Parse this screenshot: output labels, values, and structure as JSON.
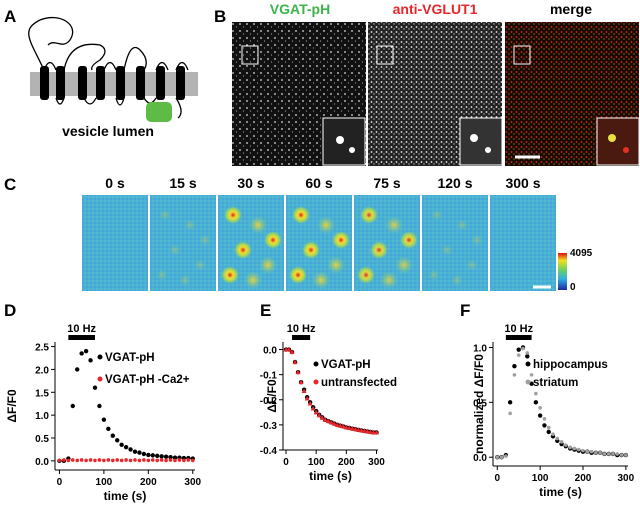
{
  "figure": {
    "panel_labels": [
      "A",
      "B",
      "C",
      "D",
      "E",
      "F"
    ],
    "a": {
      "label": "vesicle lumen"
    },
    "b": {
      "titles": [
        "VGAT-pH",
        "anti-VGLUT1",
        "merge"
      ]
    },
    "c": {
      "times": [
        "0 s",
        "15 s",
        "30 s",
        "60 s",
        "75 s",
        "120 s",
        "300 s"
      ],
      "colorbar": {
        "max": 4095,
        "min": 0
      }
    }
  },
  "chart_data": [
    {
      "type": "scatter",
      "y_label": "ΔF/F0",
      "x_label": "time (s)",
      "stimulus": {
        "label": "10 Hz",
        "x": [
          20,
          80
        ]
      },
      "xlim": [
        -10,
        305
      ],
      "ylim": [
        -0.2,
        2.6
      ],
      "xticks": [
        0,
        100,
        200,
        300
      ],
      "yticks": [
        {
          "value": 0,
          "label": "0.0"
        },
        0.5,
        {
          "value": 1,
          "label": "1.0"
        },
        1.5,
        {
          "value": 2,
          "label": "2.0"
        },
        2.5
      ],
      "x": [
        0,
        10,
        20,
        30,
        40,
        50,
        60,
        70,
        80,
        90,
        100,
        110,
        120,
        130,
        140,
        150,
        160,
        170,
        180,
        190,
        200,
        210,
        220,
        230,
        240,
        250,
        260,
        270,
        280,
        290,
        300
      ],
      "series": [
        {
          "name": "VGAT-pH",
          "color": "#000000",
          "values": [
            0,
            0,
            0.05,
            1.2,
            2.0,
            2.35,
            2.4,
            2.2,
            1.6,
            1.2,
            0.9,
            0.7,
            0.55,
            0.45,
            0.35,
            0.3,
            0.25,
            0.2,
            0.18,
            0.15,
            0.13,
            0.12,
            0.11,
            0.1,
            0.09,
            0.08,
            0.07,
            0.07,
            0.06,
            0.06,
            0.05
          ]
        },
        {
          "name": "VGAT-pH -Ca2+",
          "color": "#e8262b",
          "values": [
            0.01,
            0.02,
            0.01,
            0.02,
            0.01,
            0.02,
            0.01,
            0.02,
            0.01,
            0.02,
            0.01,
            0.02,
            0.01,
            0.02,
            0.01,
            0.02,
            0.01,
            0.02,
            0.01,
            0.02,
            0.01,
            0.02,
            0.01,
            0.02,
            0.01,
            0.02,
            0.01,
            0.02,
            0.01,
            0.02,
            0.01
          ]
        }
      ]
    },
    {
      "type": "scatter",
      "y_label": "ΔF/F0",
      "x_label": "time (s)",
      "stimulus": {
        "label": "10 Hz",
        "x": [
          20,
          80
        ]
      },
      "xlim": [
        -10,
        305
      ],
      "ylim": [
        -0.4,
        0.03
      ],
      "xticks": [
        0,
        100,
        200,
        300
      ],
      "yticks": [
        {
          "value": 0,
          "label": "0.0"
        },
        -0.1,
        -0.2,
        -0.3,
        -0.4
      ],
      "x": [
        0,
        10,
        20,
        30,
        40,
        50,
        60,
        70,
        80,
        90,
        100,
        110,
        120,
        130,
        140,
        150,
        160,
        170,
        180,
        190,
        200,
        210,
        220,
        230,
        240,
        250,
        260,
        270,
        280,
        290,
        300
      ],
      "series": [
        {
          "name": "VGAT-pH",
          "color": "#000000",
          "values": [
            0,
            0,
            -0.01,
            -0.05,
            -0.09,
            -0.13,
            -0.16,
            -0.19,
            -0.21,
            -0.23,
            -0.245,
            -0.26,
            -0.27,
            -0.28,
            -0.285,
            -0.29,
            -0.295,
            -0.3,
            -0.303,
            -0.306,
            -0.31,
            -0.312,
            -0.315,
            -0.317,
            -0.32,
            -0.322,
            -0.324,
            -0.326,
            -0.328,
            -0.33,
            -0.33
          ]
        },
        {
          "name": "untransfected",
          "color": "#e8262b",
          "values": [
            0,
            0,
            -0.01,
            -0.05,
            -0.09,
            -0.13,
            -0.165,
            -0.195,
            -0.215,
            -0.235,
            -0.25,
            -0.262,
            -0.272,
            -0.28,
            -0.285,
            -0.29,
            -0.295,
            -0.3,
            -0.303,
            -0.306,
            -0.31,
            -0.312,
            -0.315,
            -0.317,
            -0.32,
            -0.322,
            -0.324,
            -0.326,
            -0.328,
            -0.33,
            -0.33
          ]
        }
      ]
    },
    {
      "type": "scatter",
      "y_label": "normalized ΔF/F0",
      "x_label": "time (s)",
      "stimulus": {
        "label": "10 Hz",
        "x": [
          20,
          80
        ]
      },
      "xlim": [
        -10,
        305
      ],
      "ylim": [
        -0.08,
        1.05
      ],
      "xticks": [
        0,
        100,
        200,
        300
      ],
      "yticks": [
        {
          "value": 0,
          "label": "0.0"
        },
        0.5,
        {
          "value": 1,
          "label": "1.0"
        }
      ],
      "x": [
        0,
        10,
        20,
        30,
        40,
        50,
        60,
        70,
        80,
        90,
        100,
        110,
        120,
        130,
        140,
        150,
        160,
        170,
        180,
        190,
        200,
        210,
        220,
        230,
        240,
        250,
        260,
        270,
        280,
        290,
        300
      ],
      "series": [
        {
          "name": "hippocampus",
          "color": "#000000",
          "values": [
            0,
            0,
            0.02,
            0.5,
            0.83,
            0.98,
            1.0,
            0.92,
            0.67,
            0.5,
            0.38,
            0.29,
            0.23,
            0.19,
            0.15,
            0.12,
            0.1,
            0.08,
            0.07,
            0.06,
            0.05,
            0.05,
            0.04,
            0.04,
            0.04,
            0.03,
            0.03,
            0.03,
            0.02,
            0.02,
            0.02
          ]
        },
        {
          "name": "striatum",
          "color": "#a0a0a0",
          "values": [
            0,
            0,
            0.01,
            0.4,
            0.75,
            0.93,
            0.99,
            0.95,
            0.75,
            0.58,
            0.45,
            0.35,
            0.27,
            0.21,
            0.17,
            0.14,
            0.11,
            0.09,
            0.08,
            0.07,
            0.06,
            0.05,
            0.05,
            0.04,
            0.04,
            0.03,
            0.03,
            0.03,
            0.03,
            0.02,
            0.02
          ]
        }
      ]
    }
  ]
}
